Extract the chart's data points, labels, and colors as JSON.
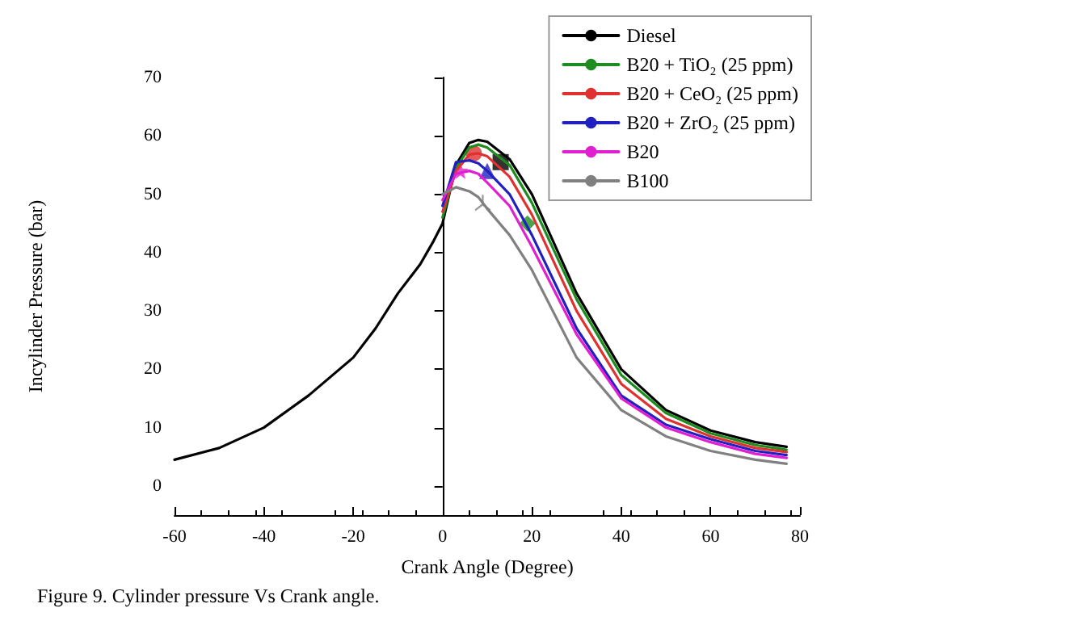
{
  "chart_data": {
    "type": "line",
    "title": "Figure 9. Cylinder pressure Vs Crank angle.",
    "xlabel": "Crank Angle (Degree)",
    "ylabel": "Incylinder Pressure (bar)",
    "x": [
      -60,
      -50,
      -40,
      -30,
      -20,
      -15,
      -10,
      -5,
      -2,
      0,
      3,
      6,
      8,
      10,
      15,
      20,
      30,
      40,
      50,
      60,
      70,
      77
    ],
    "xlim": [
      -60,
      80
    ],
    "xticks": [
      -60,
      -40,
      -20,
      0,
      20,
      40,
      60,
      80
    ],
    "ylim": [
      -5,
      70
    ],
    "yticks": [
      0,
      10,
      20,
      30,
      40,
      50,
      60,
      70
    ],
    "legend": "top right",
    "line_style": "solid",
    "series": [
      {
        "name": "Diesel",
        "color": "#000000",
        "values": [
          4.5,
          6.5,
          10,
          15.5,
          22,
          27,
          33,
          38,
          42,
          45,
          55,
          58.8,
          59.3,
          59,
          56,
          50,
          33,
          20,
          13,
          9.5,
          7.5,
          6.7
        ]
      },
      {
        "name": "B20 + TiO₂ (25 ppm)",
        "color": "#1e8c1e",
        "values": [
          null,
          null,
          null,
          null,
          null,
          null,
          null,
          null,
          null,
          46,
          54.5,
          58,
          58.5,
          58,
          55,
          48.5,
          32,
          19,
          12.5,
          9,
          7,
          6.2
        ]
      },
      {
        "name": "B20 + CeO₂ (25 ppm)",
        "color": "#e03030",
        "values": [
          null,
          null,
          null,
          null,
          null,
          null,
          null,
          null,
          null,
          47,
          54,
          56.8,
          57,
          56.5,
          53,
          46.5,
          30,
          17.5,
          11.5,
          8.5,
          6.5,
          5.8
        ]
      },
      {
        "name": "B20 + ZrO₂ (25 ppm)",
        "color": "#2020c0",
        "values": [
          null,
          null,
          null,
          null,
          null,
          null,
          null,
          null,
          null,
          48,
          55.5,
          55.8,
          55.3,
          54,
          50,
          43,
          27,
          15.5,
          10.5,
          8,
          6,
          5.3
        ]
      },
      {
        "name": "B20",
        "color": "#e020d0",
        "values": [
          null,
          null,
          null,
          null,
          null,
          null,
          null,
          null,
          null,
          49,
          53.5,
          54,
          53.5,
          52,
          48,
          41,
          26,
          15,
          10,
          7.5,
          5.5,
          4.8
        ]
      },
      {
        "name": "B100",
        "color": "#808080",
        "values": [
          null,
          null,
          null,
          null,
          null,
          null,
          null,
          null,
          null,
          50,
          51.2,
          50.5,
          49.5,
          47.5,
          43,
          37,
          22,
          13,
          8.5,
          6,
          4.5,
          3.8
        ]
      },
      {
        "type": "scatter",
        "color": "#000000",
        "marker": "square",
        "x": [
          13
        ],
        "values": [
          55.5
        ]
      },
      {
        "type": "scatter",
        "color": "#1e8c1e",
        "marker": "diamond",
        "x": [
          19
        ],
        "values": [
          45
        ]
      },
      {
        "type": "scatter",
        "color": "#e03030",
        "marker": "circle",
        "x": [
          7
        ],
        "values": [
          57
        ]
      },
      {
        "type": "scatter",
        "color": "#2020c0",
        "marker": "triangle",
        "x": [
          10
        ],
        "values": [
          54
        ]
      },
      {
        "type": "scatter",
        "color": "#e020d0",
        "marker": "star",
        "x": [
          4
        ],
        "values": [
          54
        ]
      },
      {
        "type": "scatter",
        "color": "#808080",
        "marker": "cross",
        "x": [
          9
        ],
        "values": [
          48.5
        ]
      }
    ]
  }
}
